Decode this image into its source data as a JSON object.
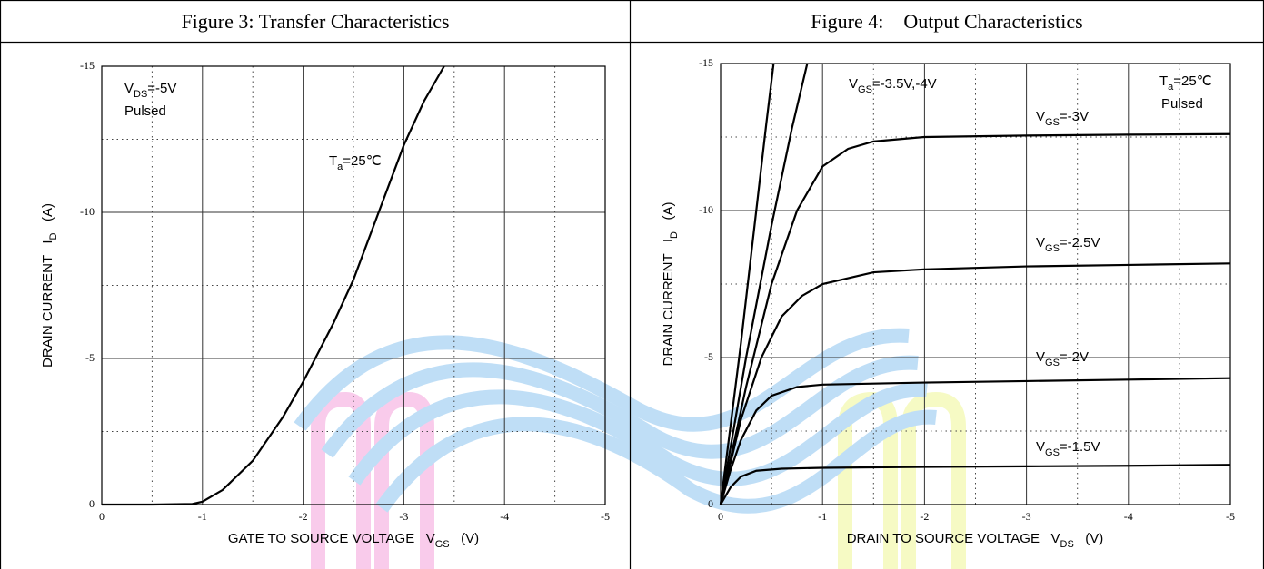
{
  "chart_data": [
    {
      "type": "line",
      "title": "Figure 3: Transfer Characteristics",
      "xlabel": [
        "GATE TO SOURCE VOLTAGE   V",
        "GS",
        "   (V)"
      ],
      "ylabel": [
        "DRAIN CURRENT   I",
        "D",
        "   (A)"
      ],
      "x": [
        0,
        -0.5,
        -0.9,
        -1,
        -1.2,
        -1.5,
        -1.8,
        -2,
        -2.3,
        -2.5,
        -2.75,
        -3,
        -3.2,
        -3.4
      ],
      "values": [
        0,
        0,
        -0.02,
        -0.1,
        -0.5,
        -1.5,
        -3,
        -4.2,
        -6.2,
        -7.7,
        -10,
        -12.3,
        -13.8,
        -15
      ],
      "color": "#000000",
      "xlim": [
        0,
        -5
      ],
      "ylim": [
        0,
        -15
      ],
      "xticks": [
        0,
        -1,
        -2,
        -3,
        -4,
        -5
      ],
      "yticks": [
        0,
        -5,
        -10,
        -15
      ],
      "minor_xticks": [
        -0.5,
        -1.5,
        -2.5,
        -3.5,
        -4.5
      ],
      "minor_yticks": [
        -2.5,
        -7.5,
        -12.5
      ],
      "grid": true,
      "annotations": [
        [
          "V",
          "DS",
          "=-5V"
        ],
        [
          "Pulsed"
        ],
        [
          "T",
          "a",
          "=25℃"
        ]
      ]
    },
    {
      "type": "line",
      "title": "Figure 4:　Output Characteristics",
      "xlabel": [
        "DRAIN TO SOURCE VOLTAGE   V",
        "DS",
        "   (V)"
      ],
      "ylabel": [
        "DRAIN CURRENT   I",
        "D",
        "   (A)"
      ],
      "series": [
        {
          "color": "#000000",
          "x": [
            0,
            -0.2,
            -0.35,
            -0.45,
            -0.52
          ],
          "values": [
            0,
            -5.5,
            -10,
            -13,
            -15
          ]
        },
        {
          "color": "#000000",
          "x": [
            0,
            -0.25,
            -0.5,
            -0.7,
            -0.85
          ],
          "values": [
            0,
            -5,
            -9.5,
            -12.8,
            -15
          ]
        },
        {
          "color": "#000000",
          "x": [
            0,
            -0.25,
            -0.5,
            -0.75,
            -1,
            -1.25,
            -1.5,
            -2,
            -3,
            -4,
            -5
          ],
          "values": [
            0,
            -4,
            -7.5,
            -10,
            -11.5,
            -12.1,
            -12.35,
            -12.5,
            -12.55,
            -12.58,
            -12.6
          ]
        },
        {
          "color": "#000000",
          "x": [
            0,
            -0.2,
            -0.4,
            -0.6,
            -0.8,
            -1,
            -1.5,
            -2,
            -3,
            -4,
            -5
          ],
          "values": [
            0,
            -2.9,
            -5,
            -6.4,
            -7.1,
            -7.5,
            -7.9,
            -8,
            -8.1,
            -8.15,
            -8.2
          ]
        },
        {
          "color": "#000000",
          "x": [
            0,
            -0.1,
            -0.2,
            -0.35,
            -0.5,
            -0.75,
            -1,
            -2,
            -3,
            -4,
            -5
          ],
          "values": [
            0,
            -1.2,
            -2.2,
            -3.2,
            -3.7,
            -4,
            -4.08,
            -4.15,
            -4.2,
            -4.25,
            -4.3
          ]
        },
        {
          "color": "#000000",
          "x": [
            0,
            -0.1,
            -0.2,
            -0.35,
            -0.6,
            -1,
            -2,
            -3,
            -4,
            -5
          ],
          "values": [
            0,
            -0.6,
            -0.95,
            -1.15,
            -1.22,
            -1.25,
            -1.28,
            -1.3,
            -1.32,
            -1.35
          ]
        }
      ],
      "xlim": [
        0,
        -5
      ],
      "ylim": [
        0,
        -15
      ],
      "xticks": [
        0,
        -1,
        -2,
        -3,
        -4,
        -5
      ],
      "yticks": [
        0,
        -5,
        -10,
        -15
      ],
      "minor_xticks": [
        -0.5,
        -1.5,
        -2.5,
        -3.5,
        -4.5
      ],
      "minor_yticks": [
        -2.5,
        -7.5,
        -12.5
      ],
      "grid": true,
      "annotations": [
        [
          "V",
          "GS",
          "=-3.5V,-4V"
        ],
        [
          "T",
          "a",
          "=25℃"
        ],
        [
          "Pulsed"
        ],
        [
          "V",
          "GS",
          "=-3V"
        ],
        [
          "V",
          "GS",
          "=-2.5V"
        ],
        [
          "V",
          "GS",
          "=-2V"
        ],
        [
          "V",
          "GS",
          "=-1.5V"
        ]
      ]
    }
  ]
}
